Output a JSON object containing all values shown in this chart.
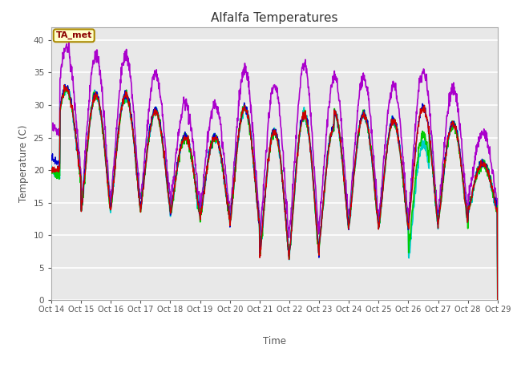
{
  "title": "Alfalfa Temperatures",
  "xlabel": "Time",
  "ylabel": "Temperature (C)",
  "annotation": "TA_met",
  "ylim": [
    0,
    42
  ],
  "yticks": [
    0,
    5,
    10,
    15,
    20,
    25,
    30,
    35,
    40
  ],
  "background_color": "#e8e8e8",
  "fig_color": "#ffffff",
  "series": {
    "PanelT": {
      "color": "#cc0000",
      "lw": 1.0
    },
    "HMP60": {
      "color": "#0000cc",
      "lw": 1.0
    },
    "NR01_PRT": {
      "color": "#00cc00",
      "lw": 1.2
    },
    "SonicT": {
      "color": "#aa00cc",
      "lw": 1.2
    },
    "AM25T_PRT": {
      "color": "#00cccc",
      "lw": 1.2
    }
  },
  "xtick_labels": [
    "Oct 14",
    "Oct 15",
    "Oct 16",
    "Oct 17",
    "Oct 18",
    "Oct 19",
    "Oct 20",
    "Oct 21",
    "Oct 22",
    "Oct 23",
    "Oct 24",
    "Oct 25",
    "Oct 26",
    "Oct 27",
    "Oct 28",
    "Oct 29"
  ],
  "n_points": 1440,
  "days": 15
}
